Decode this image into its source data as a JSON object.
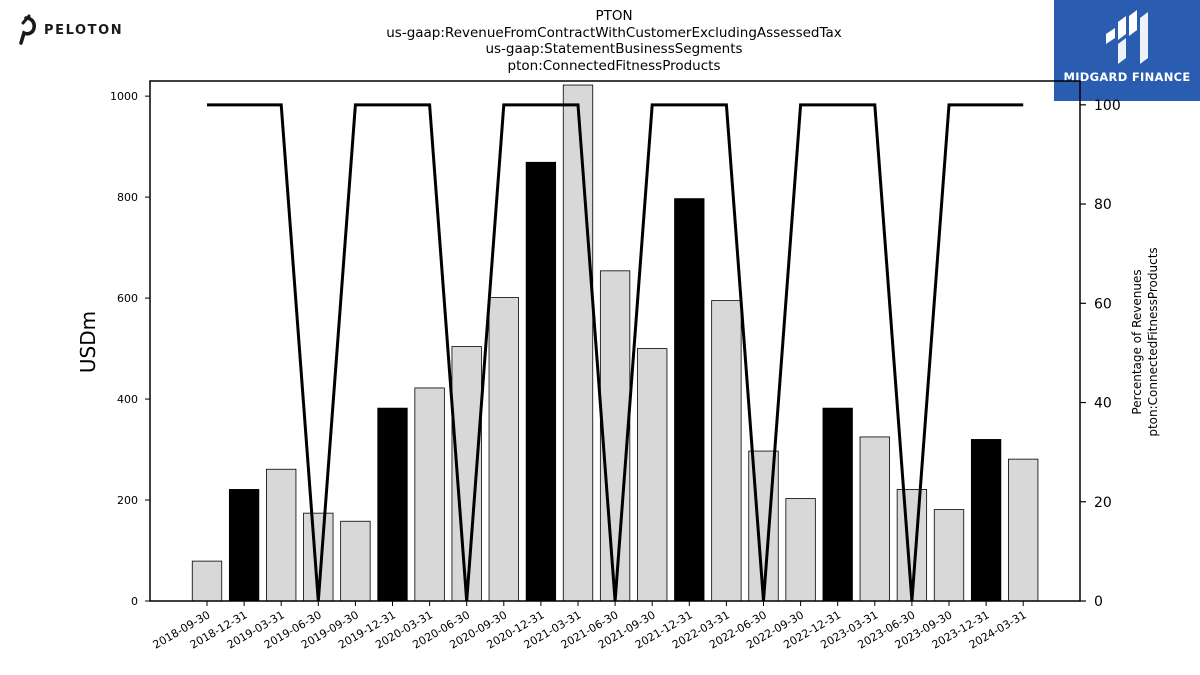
{
  "branding": {
    "left_logo_icon": "peloton-icon",
    "left_logo_text": "PELOTON",
    "right_logo_icon": "midgard-icon",
    "right_logo_text": "MIDGARD FINANCE",
    "right_logo_bg": "#2a5db0"
  },
  "chart_data": {
    "type": "bar",
    "title": [
      "PTON",
      "us-gaap:RevenueFromContractWithCustomerExcludingAssessedTax",
      "us-gaap:StatementBusinessSegments",
      "pton:ConnectedFitnessProducts"
    ],
    "ylabel": "USDm",
    "y2label": [
      "Percentage of Revenues",
      "pton:ConnectedFitnessProducts"
    ],
    "ylim": [
      0,
      1030
    ],
    "y2lim": [
      0,
      104.8
    ],
    "yticks": [
      0,
      200,
      400,
      600,
      800,
      1000
    ],
    "y2ticks": [
      0,
      20,
      40,
      60,
      80,
      100
    ],
    "categories": [
      "2018-09-30",
      "2018-12-31",
      "2019-03-31",
      "2019-06-30",
      "2019-09-30",
      "2019-12-31",
      "2020-03-31",
      "2020-06-30",
      "2020-09-30",
      "2020-12-31",
      "2021-03-31",
      "2021-06-30",
      "2021-09-30",
      "2021-12-31",
      "2022-03-31",
      "2022-06-30",
      "2022-09-30",
      "2022-12-31",
      "2023-03-31",
      "2023-06-30",
      "2023-09-30",
      "2023-12-31",
      "2024-03-31"
    ],
    "values": [
      79,
      221,
      261,
      174,
      158,
      382,
      422,
      504,
      601,
      869,
      1022,
      654,
      500,
      797,
      595,
      297,
      203,
      382,
      325,
      221,
      181,
      320,
      281
    ],
    "highlight": [
      false,
      true,
      false,
      false,
      false,
      true,
      false,
      false,
      false,
      true,
      false,
      false,
      false,
      true,
      false,
      false,
      false,
      true,
      false,
      false,
      false,
      true,
      false
    ],
    "percentage": [
      100,
      100,
      100,
      0,
      100,
      100,
      100,
      0,
      100,
      100,
      100,
      0,
      100,
      100,
      100,
      0,
      100,
      100,
      100,
      0,
      100,
      100,
      100
    ],
    "colors": {
      "bar": "#d8d8d8",
      "bar_highlight": "#000000",
      "line": "#000000"
    },
    "grid": false
  }
}
